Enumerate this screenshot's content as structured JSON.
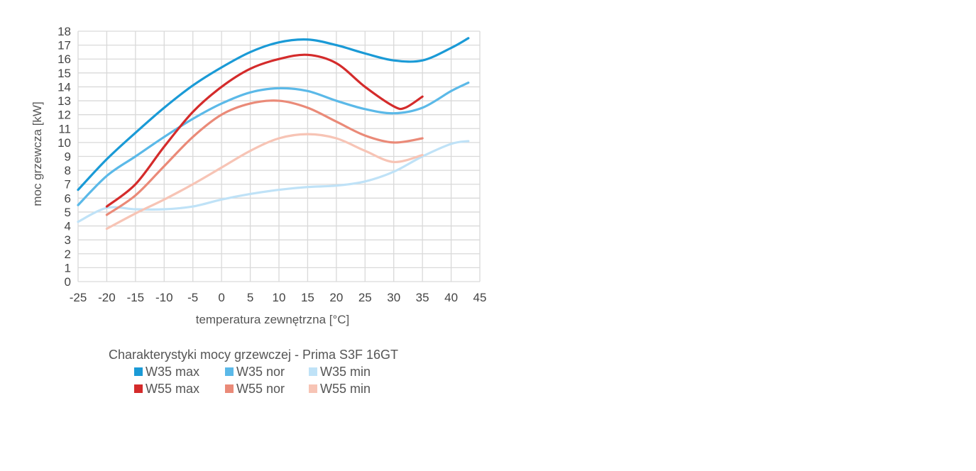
{
  "chart_data": {
    "type": "line",
    "title": "Charakterystyki mocy grzewczej - Prima S3F 16GT",
    "xlabel": "temperatura zewnętrzna [°C]",
    "ylabel": "moc grzewcza [kW]",
    "xlim": [
      -25,
      45
    ],
    "ylim": [
      0,
      18
    ],
    "x_ticks": [
      "-25",
      "-20",
      "-15",
      "-10",
      "-5",
      "0",
      "5",
      "10",
      "15",
      "20",
      "25",
      "30",
      "35",
      "40",
      "45"
    ],
    "y_ticks": [
      "0",
      "1",
      "2",
      "3",
      "4",
      "5",
      "6",
      "7",
      "8",
      "9",
      "10",
      "11",
      "12",
      "13",
      "14",
      "15",
      "16",
      "17",
      "18"
    ],
    "grid": true,
    "legend_position": "bottom",
    "series": [
      {
        "name": "W35 max",
        "color": "#1a9ad6",
        "x": [
          -25,
          -20,
          -15,
          -10,
          -5,
          0,
          5,
          10,
          15,
          20,
          25,
          30,
          35,
          40,
          43
        ],
        "y": [
          6.6,
          8.8,
          10.7,
          12.5,
          14.1,
          15.4,
          16.5,
          17.2,
          17.4,
          17.0,
          16.4,
          15.9,
          15.9,
          16.8,
          17.5
        ]
      },
      {
        "name": "W35 nor",
        "color": "#5bb9e8",
        "x": [
          -25,
          -20,
          -15,
          -10,
          -5,
          0,
          5,
          10,
          15,
          20,
          25,
          30,
          35,
          40,
          43
        ],
        "y": [
          5.5,
          7.6,
          9.0,
          10.4,
          11.7,
          12.8,
          13.6,
          13.9,
          13.7,
          13.0,
          12.4,
          12.1,
          12.5,
          13.7,
          14.3
        ]
      },
      {
        "name": "W35 min",
        "color": "#bfe2f7",
        "x": [
          -25,
          -20,
          -15,
          -10,
          -5,
          0,
          5,
          10,
          15,
          20,
          25,
          30,
          35,
          40,
          43
        ],
        "y": [
          4.3,
          5.3,
          5.2,
          5.2,
          5.4,
          5.9,
          6.3,
          6.6,
          6.8,
          6.9,
          7.2,
          7.9,
          9.0,
          9.9,
          10.1
        ]
      },
      {
        "name": "W55 max",
        "color": "#d42b2b",
        "x": [
          -20,
          -15,
          -10,
          -5,
          0,
          5,
          10,
          15,
          20,
          25,
          30,
          32,
          35
        ],
        "y": [
          5.4,
          7.0,
          9.7,
          12.2,
          14.0,
          15.3,
          16.0,
          16.3,
          15.7,
          14.0,
          12.6,
          12.5,
          13.3
        ]
      },
      {
        "name": "W55 nor",
        "color": "#ea8a78",
        "x": [
          -20,
          -15,
          -10,
          -5,
          0,
          5,
          10,
          15,
          20,
          25,
          30,
          35
        ],
        "y": [
          4.8,
          6.2,
          8.3,
          10.4,
          12.0,
          12.8,
          13.0,
          12.5,
          11.5,
          10.5,
          10.0,
          10.3
        ]
      },
      {
        "name": "W55 min",
        "color": "#f7c4b5",
        "x": [
          -20,
          -15,
          -10,
          -5,
          0,
          5,
          10,
          15,
          20,
          25,
          30,
          35
        ],
        "y": [
          3.8,
          4.9,
          5.9,
          7.0,
          8.2,
          9.4,
          10.3,
          10.6,
          10.3,
          9.4,
          8.6,
          9.1
        ]
      }
    ],
    "legend_rows": [
      [
        "W35 max",
        "W35 nor",
        "W35 min"
      ],
      [
        "W55 max",
        "W55 nor",
        "W55 min"
      ]
    ]
  }
}
